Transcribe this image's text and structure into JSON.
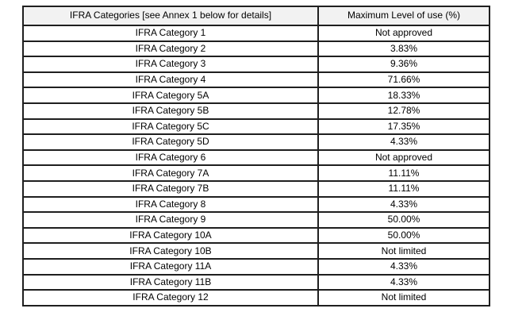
{
  "table": {
    "headers": {
      "category": "IFRA Categories [see Annex 1 below for details]",
      "max_level": "Maximum Level of use (%)"
    },
    "rows": [
      {
        "category": "IFRA Category 1",
        "max_level": "Not approved"
      },
      {
        "category": "IFRA Category 2",
        "max_level": "3.83%"
      },
      {
        "category": "IFRA Category 3",
        "max_level": "9.36%"
      },
      {
        "category": "IFRA Category 4",
        "max_level": "71.66%"
      },
      {
        "category": "IFRA Category 5A",
        "max_level": "18.33%"
      },
      {
        "category": "IFRA Category 5B",
        "max_level": "12.78%"
      },
      {
        "category": "IFRA Category 5C",
        "max_level": "17.35%"
      },
      {
        "category": "IFRA Category 5D",
        "max_level": "4.33%"
      },
      {
        "category": "IFRA Category 6",
        "max_level": "Not approved"
      },
      {
        "category": "IFRA Category 7A",
        "max_level": "11.11%"
      },
      {
        "category": "IFRA Category 7B",
        "max_level": "11.11%"
      },
      {
        "category": "IFRA Category 8",
        "max_level": "4.33%"
      },
      {
        "category": "IFRA Category 9",
        "max_level": "50.00%"
      },
      {
        "category": "IFRA Category 10A",
        "max_level": "50.00%"
      },
      {
        "category": "IFRA Category 10B",
        "max_level": "Not limited"
      },
      {
        "category": "IFRA Category 11A",
        "max_level": "4.33%"
      },
      {
        "category": "IFRA Category 11B",
        "max_level": "4.33%"
      },
      {
        "category": "IFRA Category 12",
        "max_level": "Not limited"
      }
    ],
    "colors": {
      "header_bg": "#f2f2f2",
      "border": "#1f1f1f",
      "text": "#000000",
      "page_bg": "#ffffff"
    }
  }
}
